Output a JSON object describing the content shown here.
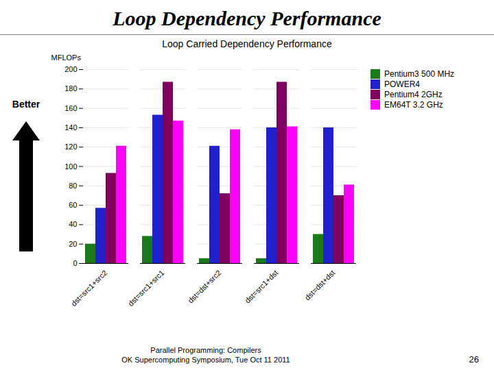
{
  "chart_data": {
    "type": "bar",
    "title": "Loop Dependency Performance",
    "subtitle": "Loop Carried Dependency Performance",
    "ylabel": "MFLOPs",
    "annotations": [
      "Better",
      "Parallel Programming:  Compilers",
      "OK Supercomputing Symposium, Tue Oct 11 2011",
      "26"
    ],
    "categories": [
      "dst=src1+src2",
      "dst=src1+src1",
      "dst=dst+src2",
      "dst=src1+dst",
      "dst=dst+dst"
    ],
    "series": [
      {
        "name": "Pentium3 500 MHz",
        "color": "#1a7a1a",
        "values": [
          20,
          28,
          5,
          5,
          30
        ]
      },
      {
        "name": "POWER4",
        "color": "#2020cc",
        "values": [
          57,
          153,
          121,
          140,
          140
        ]
      },
      {
        "name": "Pentium4 2GHz",
        "color": "#800060",
        "values": [
          93,
          187,
          72,
          187,
          70
        ]
      },
      {
        "name": "EM64T 3.2 GHz",
        "color": "#ff00ff",
        "values": [
          121,
          147,
          138,
          141,
          81
        ]
      }
    ],
    "ylim": [
      0,
      200
    ],
    "yticks": [
      0,
      20,
      40,
      60,
      80,
      100,
      120,
      140,
      160,
      180,
      200
    ],
    "grid": true,
    "legend": "right"
  }
}
